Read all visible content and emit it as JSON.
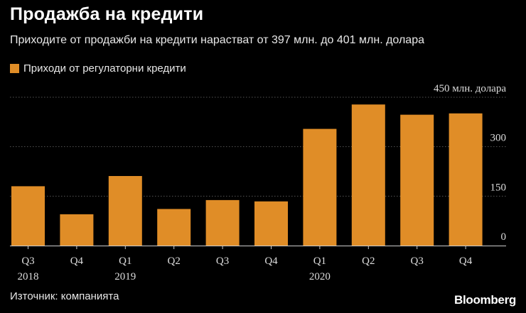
{
  "title": "Продажба на кредити",
  "subtitle": "Приходите от продажби на кредити нарастват от 397 млн. до 401 млн. долара",
  "source": "Източник: компанията",
  "brand": "Bloomberg",
  "colors": {
    "bar": "#e08d27",
    "background": "#000000",
    "grid": "#555555",
    "axis": "#cccccc"
  },
  "chart_data": {
    "type": "bar",
    "categories": [
      "Q3",
      "Q4",
      "Q1",
      "Q2",
      "Q3",
      "Q4",
      "Q1",
      "Q2",
      "Q3",
      "Q4"
    ],
    "year_labels": [
      "2018",
      "",
      "2019",
      "",
      "",
      "",
      "2020",
      "",
      "",
      ""
    ],
    "series": [
      {
        "name": "Приходи от регулаторни кредити",
        "values": [
          180,
          95,
          211,
          111,
          138,
          134,
          354,
          428,
          397,
          401
        ]
      }
    ],
    "ylim": [
      0,
      450
    ],
    "yticks": [
      0,
      150,
      300,
      450
    ],
    "ytick_labels": [
      "0",
      "150",
      "300",
      "450 млн. долара"
    ],
    "y_axis_position": "right",
    "grid": true
  }
}
